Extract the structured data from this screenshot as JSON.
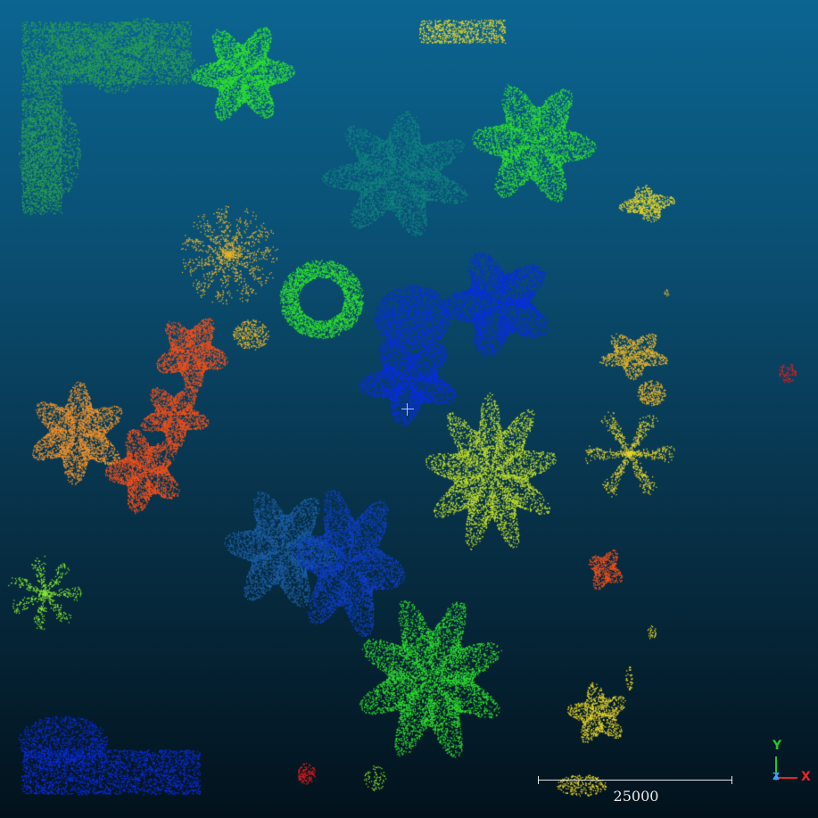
{
  "viewer": {
    "background_top": "#0b6591",
    "background_bottom": "#02121c"
  },
  "scale_bar": {
    "label": "25000"
  },
  "axes": {
    "x_label": "X",
    "y_label": "Y",
    "z_label": "Z",
    "x_color": "#e8252b",
    "y_color": "#29c42e",
    "z_color": "#3aa0ff"
  },
  "tree_colors": {
    "green": "#2fe02f",
    "light_green": "#86ea2f",
    "teal_green": "#2aa050",
    "dark_teal": "#12857e",
    "blue": "#0a2ee0",
    "mid_blue": "#1040c8",
    "steel_blue": "#1d5fa8",
    "orange": "#f0922c",
    "red_orange": "#f0501c",
    "yellow": "#e6d429",
    "gold": "#e8b428",
    "yellow_green": "#c4e02a",
    "red": "#e02020"
  }
}
